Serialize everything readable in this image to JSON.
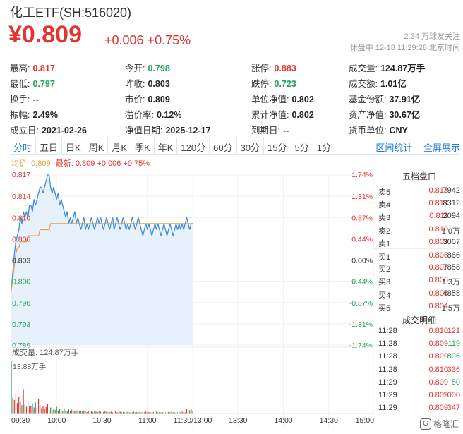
{
  "header": {
    "title": "化工ETF(SH:516020)",
    "price": "¥0.809",
    "change": "+0.006 +0.75%",
    "followers": "2.34 万球友关注",
    "status": "休盘中 12-18 11:29:28 北京时间"
  },
  "stats": [
    {
      "label": "最高:",
      "value": "0.817",
      "color": "red"
    },
    {
      "label": "今开:",
      "value": "0.798",
      "color": "green"
    },
    {
      "label": "涨停:",
      "value": "0.883",
      "color": "red"
    },
    {
      "label": "成交量:",
      "value": "124.87万手",
      "color": "blk"
    },
    {
      "label": "最低:",
      "value": "0.797",
      "color": "green"
    },
    {
      "label": "昨收:",
      "value": "0.803",
      "color": "blk"
    },
    {
      "label": "跌停:",
      "value": "0.723",
      "color": "green"
    },
    {
      "label": "成交额:",
      "value": "1.01亿",
      "color": "blk"
    },
    {
      "label": "换手:",
      "value": "--",
      "color": "blk"
    },
    {
      "label": "市价:",
      "value": "0.809",
      "color": "blk"
    },
    {
      "label": "单位净值:",
      "value": "0.802",
      "color": "blk"
    },
    {
      "label": "基金份额:",
      "value": "37.91亿",
      "color": "blk"
    },
    {
      "label": "振幅:",
      "value": "2.49%",
      "color": "blk"
    },
    {
      "label": "溢价率:",
      "value": "0.12%",
      "color": "blk"
    },
    {
      "label": "累计净值:",
      "value": "0.802",
      "color": "blk"
    },
    {
      "label": "资产净值:",
      "value": "30.67亿",
      "color": "blk"
    },
    {
      "label": "成立日:",
      "value": "2021-02-26",
      "color": "blk"
    },
    {
      "label": "净值日期:",
      "value": "2025-12-17",
      "color": "blk"
    },
    {
      "label": "到期日:",
      "value": "--",
      "color": "blk"
    },
    {
      "label": "货币单位:",
      "value": "CNY",
      "color": "blk"
    }
  ],
  "tabs": [
    "分时",
    "五日",
    "日K",
    "周K",
    "月K",
    "季K",
    "年K",
    "120分",
    "60分",
    "30分",
    "15分",
    "5分",
    "1分"
  ],
  "active_tab": "分时",
  "tabs_right": [
    "区间统计",
    "全屏展示"
  ],
  "legend": {
    "avg": "均价: 0.809",
    "latest": "最新: 0.809 +0.006 +0.75%"
  },
  "chart_data": {
    "type": "line",
    "y_ticks_left": [
      "0.817",
      "0.814",
      "0.810",
      "0.806",
      "0.803",
      "0.800",
      "0.796",
      "0.793",
      "0.789"
    ],
    "y_ticks_right": [
      "1.74%",
      "1.31%",
      "0.87%",
      "0.44%",
      "0.00%",
      "-0.44%",
      "-0.87%",
      "-1.31%",
      "-1.74%"
    ],
    "ylim": [
      0.789,
      0.817
    ],
    "prev_close": 0.803,
    "x_ticks": [
      "09:30",
      "10:00",
      "10:30",
      "11:00",
      "11:30/13:00",
      "13:30",
      "14:00",
      "14:30",
      "15:00"
    ],
    "volume_label": "成交量: 124.87万手",
    "volume_max_label": "13.88万手",
    "series": [
      {
        "values": [
          0.798,
          0.801,
          0.804,
          0.806,
          0.807,
          0.808,
          0.81,
          0.809,
          0.811,
          0.81,
          0.811,
          0.81,
          0.812,
          0.812,
          0.811,
          0.813,
          0.812,
          0.813,
          0.814,
          0.815,
          0.815,
          0.814,
          0.815,
          0.816,
          0.817,
          0.817,
          0.815,
          0.814,
          0.815,
          0.814,
          0.813,
          0.814,
          0.812,
          0.813,
          0.812,
          0.811,
          0.81,
          0.811,
          0.809,
          0.81,
          0.809,
          0.81,
          0.811,
          0.809,
          0.81,
          0.809,
          0.808,
          0.809,
          0.81,
          0.808,
          0.809,
          0.808,
          0.809,
          0.81,
          0.809,
          0.808,
          0.809,
          0.81,
          0.809,
          0.81,
          0.809,
          0.808,
          0.809,
          0.81,
          0.809,
          0.808,
          0.809,
          0.81,
          0.808,
          0.809,
          0.81,
          0.809,
          0.808,
          0.809,
          0.81,
          0.809,
          0.808,
          0.809,
          0.808,
          0.809,
          0.81,
          0.809,
          0.808,
          0.809,
          0.81,
          0.809,
          0.808,
          0.807,
          0.808,
          0.809,
          0.808,
          0.809,
          0.808,
          0.807,
          0.808,
          0.809,
          0.808,
          0.809,
          0.808,
          0.807,
          0.808,
          0.809,
          0.808,
          0.807,
          0.808,
          0.809,
          0.808,
          0.807,
          0.808,
          0.809,
          0.808,
          0.809,
          0.808,
          0.809,
          0.808,
          0.809,
          0.81,
          0.809,
          0.808,
          0.809,
          0.809
        ]
      },
      {
        "values": [
          0.798,
          0.8,
          0.802,
          0.804,
          0.805,
          0.805,
          0.806,
          0.806,
          0.806,
          0.806,
          0.806,
          0.807,
          0.807,
          0.807,
          0.807,
          0.807,
          0.807,
          0.807,
          0.807,
          0.808,
          0.808,
          0.808,
          0.808,
          0.808,
          0.808,
          0.808,
          0.809,
          0.809,
          0.809,
          0.809,
          0.809,
          0.809,
          0.809,
          0.809,
          0.809,
          0.809,
          0.809,
          0.809,
          0.809,
          0.809,
          0.809,
          0.809,
          0.809,
          0.809,
          0.809,
          0.809,
          0.809,
          0.809,
          0.809,
          0.809,
          0.809,
          0.809,
          0.809,
          0.809,
          0.809,
          0.809,
          0.809,
          0.809,
          0.809,
          0.809,
          0.809,
          0.809,
          0.809,
          0.809,
          0.809,
          0.809,
          0.809,
          0.809,
          0.809,
          0.809,
          0.809,
          0.809,
          0.809,
          0.809,
          0.809,
          0.809,
          0.809,
          0.809,
          0.809,
          0.809,
          0.809,
          0.809,
          0.809,
          0.809,
          0.809,
          0.809,
          0.809,
          0.809,
          0.809,
          0.809,
          0.809,
          0.809,
          0.809,
          0.809,
          0.809,
          0.809,
          0.809,
          0.809,
          0.809,
          0.809,
          0.809,
          0.809,
          0.809,
          0.809,
          0.809,
          0.809,
          0.809,
          0.809,
          0.809,
          0.809,
          0.809,
          0.809,
          0.809,
          0.809,
          0.809,
          0.809,
          0.809,
          0.809,
          0.809,
          0.809,
          0.809
        ]
      }
    ],
    "volume": [
      13.88,
      4.2,
      3.6,
      5.1,
      2.8,
      4.4,
      3.0,
      2.2,
      6.5,
      2.6,
      1.8,
      3.4,
      2.1,
      1.9,
      2.7,
      1.6,
      2.9,
      1.5,
      3.8,
      2.3,
      1.4,
      2.0,
      1.2,
      1.7,
      2.5,
      1.1,
      1.6,
      0.9,
      1.3,
      1.0,
      1.8,
      0.8,
      1.2,
      0.9,
      0.7,
      1.4,
      0.8,
      0.6,
      1.1,
      0.7,
      1.0,
      0.6,
      0.8,
      0.5,
      0.9,
      0.7,
      0.6,
      0.5,
      0.8,
      0.6,
      0.4,
      0.7,
      0.5,
      0.6,
      0.4,
      0.5,
      0.7,
      0.4,
      0.6,
      0.5,
      0.3,
      0.4,
      0.6,
      0.5,
      0.3,
      0.4,
      0.5,
      0.3,
      0.4,
      0.6,
      0.3,
      0.4,
      0.5,
      0.3,
      0.4,
      0.3,
      0.5,
      0.4,
      0.3,
      0.4,
      0.3,
      0.5,
      0.3,
      0.4,
      0.3,
      0.4,
      0.3,
      0.4,
      0.3,
      0.5,
      0.3,
      0.4,
      0.3,
      0.3,
      0.4,
      0.3,
      0.5,
      0.3,
      0.4,
      0.3,
      0.3,
      0.4,
      0.3,
      0.3,
      0.4,
      0.3,
      0.5,
      0.3,
      0.3,
      0.4,
      0.3,
      0.4,
      0.3,
      0.5,
      0.4,
      0.3,
      1.2,
      0.5,
      0.9,
      1.3,
      0.6
    ],
    "volume_colors_up": [
      0,
      0,
      1,
      1,
      1,
      1,
      1,
      0,
      1,
      0,
      1,
      0,
      1,
      1,
      0,
      1,
      0,
      1,
      1,
      1,
      0,
      1,
      1,
      1,
      1,
      1,
      0,
      0,
      1,
      0,
      0,
      1,
      0,
      1,
      0,
      0,
      0,
      1,
      0,
      1,
      0,
      1,
      1,
      0,
      1,
      0,
      0,
      1,
      1,
      0,
      1,
      0,
      1,
      1,
      0,
      0,
      1,
      1,
      0,
      1,
      0,
      0,
      1,
      1,
      0,
      0,
      1,
      1,
      0,
      1,
      1,
      0,
      0,
      1,
      1,
      0,
      0,
      1,
      0,
      1,
      1,
      0,
      0,
      1,
      1,
      0,
      0,
      0,
      1,
      1,
      0,
      1,
      0,
      0,
      1,
      1,
      0,
      1,
      0,
      0,
      1,
      1,
      0,
      0,
      1,
      1,
      0,
      0,
      1,
      1,
      0,
      1,
      0,
      1,
      0,
      1,
      1,
      0,
      0,
      1,
      0
    ]
  },
  "order_book": {
    "title": "五档盘口",
    "rows": [
      {
        "label": "卖5",
        "price": "0.813",
        "volume": "7942",
        "color": "red"
      },
      {
        "label": "卖4",
        "price": "0.812",
        "volume": "8312",
        "color": "red"
      },
      {
        "label": "卖3",
        "price": "0.811",
        "volume": "2094",
        "color": "red"
      },
      {
        "label": "卖2",
        "price": "0.810",
        "volume": "1.0万",
        "color": "red"
      },
      {
        "label": "卖1",
        "price": "0.809",
        "volume": "3007",
        "color": "red"
      },
      {
        "label": "买1",
        "price": "0.808",
        "volume": "886",
        "color": "red"
      },
      {
        "label": "买2",
        "price": "0.807",
        "volume": "7858",
        "color": "red"
      },
      {
        "label": "买3",
        "price": "0.806",
        "volume": "1.3万",
        "color": "red"
      },
      {
        "label": "买4",
        "price": "0.805",
        "volume": "4858",
        "color": "red"
      },
      {
        "label": "买5",
        "price": "0.804",
        "volume": "1.5万",
        "color": "red"
      }
    ]
  },
  "trades": {
    "title": "成交明细",
    "rows": [
      {
        "time": "11:28",
        "price": "0.810",
        "volume": "121",
        "vcolor": "red"
      },
      {
        "time": "11:28",
        "price": "0.809",
        "volume": "119",
        "vcolor": "green"
      },
      {
        "time": "11:28",
        "price": "0.809",
        "volume": "896",
        "vcolor": "green"
      },
      {
        "time": "11:28",
        "price": "0.810",
        "volume": "336",
        "vcolor": "red"
      },
      {
        "time": "11:29",
        "price": "0.809",
        "volume": "50",
        "vcolor": "green"
      },
      {
        "time": "11:29",
        "price": "0.809",
        "volume": "1000",
        "vcolor": "red"
      },
      {
        "time": "11:29",
        "price": "0.809",
        "volume": "347",
        "vcolor": "red"
      }
    ]
  },
  "watermark": "格隆汇",
  "colors": {
    "up": "#e3342f",
    "down": "#21a35b",
    "price_line": "#3d8ede",
    "avg_line": "#e3a23b",
    "accent": "#1e7fd4"
  }
}
